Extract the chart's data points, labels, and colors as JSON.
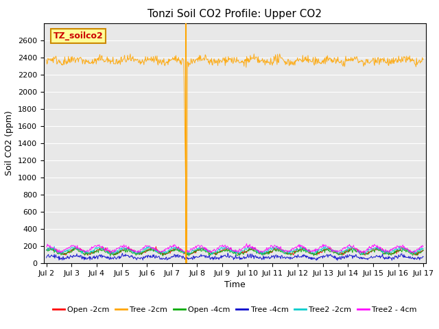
{
  "title": "Tonzi Soil CO2 Profile: Upper CO2",
  "ylabel": "Soil CO2 (ppm)",
  "xlabel": "Time",
  "watermark_text": "TZ_soilco2",
  "ylim": [
    0,
    2800
  ],
  "yticks": [
    0,
    200,
    400,
    600,
    800,
    1000,
    1200,
    1400,
    1600,
    1800,
    2000,
    2200,
    2400,
    2600
  ],
  "x_start_day": 2,
  "x_end_day": 17,
  "x_tick_days": [
    2,
    3,
    4,
    5,
    6,
    7,
    8,
    9,
    10,
    11,
    12,
    13,
    14,
    15,
    16,
    17
  ],
  "x_tick_labels": [
    "Jul 2",
    "Jul 3",
    "Jul 4",
    "Jul 5",
    "Jul 6",
    "Jul 7",
    "Jul 8",
    "Jul 9",
    "Jul 10",
    "Jul 11",
    "Jul 12",
    "Jul 13",
    "Jul 14",
    "Jul 15",
    "Jul 16",
    "Jul 17"
  ],
  "vertical_line_day": 7.55,
  "vertical_line_color": "#FFA500",
  "background_color": "#E8E8E8",
  "series": [
    {
      "name": "Open -2cm",
      "color": "#FF0000",
      "mean": 140,
      "amplitude": 30,
      "noise": 10,
      "phase": 0.3
    },
    {
      "name": "Tree -2cm",
      "color": "#FFA500",
      "mean": 2360,
      "amplitude": 20,
      "noise": 25,
      "phase": 0.1
    },
    {
      "name": "Open -4cm",
      "color": "#00AA00",
      "mean": 130,
      "amplitude": 25,
      "noise": 10,
      "phase": 0.7
    },
    {
      "name": "Tree -4cm",
      "color": "#0000CC",
      "mean": 70,
      "amplitude": 15,
      "noise": 12,
      "phase": 0.5
    },
    {
      "name": "Tree2 -2cm",
      "color": "#00CCCC",
      "mean": 150,
      "amplitude": 28,
      "noise": 10,
      "phase": 0.9
    },
    {
      "name": "Tree2 - 4cm",
      "color": "#FF00FF",
      "mean": 170,
      "amplitude": 32,
      "noise": 10,
      "phase": 1.2
    }
  ],
  "title_fontsize": 11,
  "label_fontsize": 9,
  "tick_fontsize": 8,
  "legend_fontsize": 8
}
